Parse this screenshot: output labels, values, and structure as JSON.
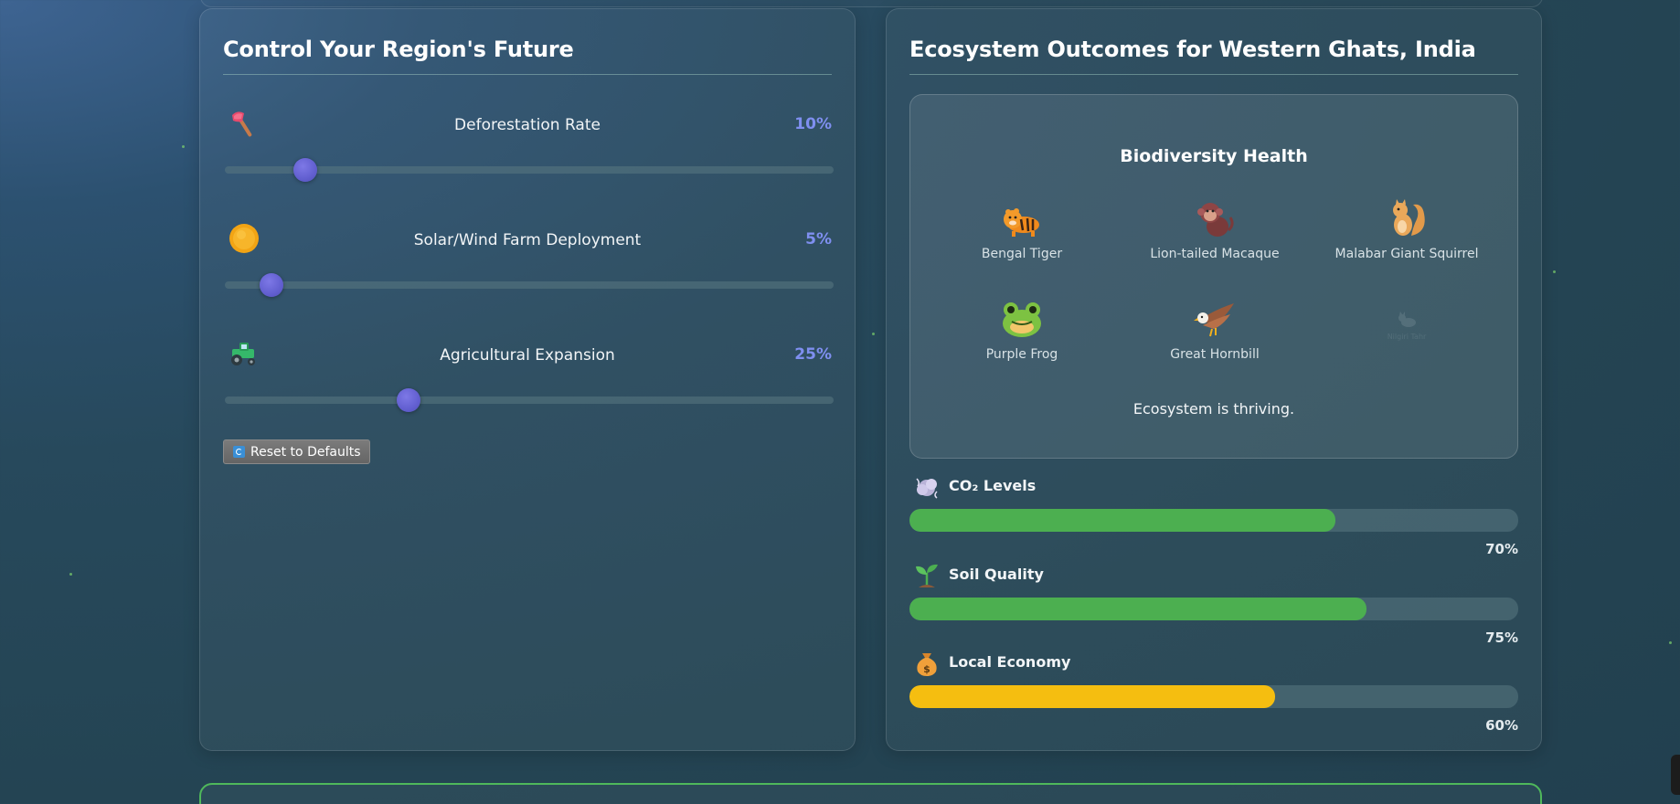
{
  "controls": {
    "title": "Control Your Region's Future",
    "sliders": [
      {
        "icon": "axe-icon",
        "label": "Deforestation Rate",
        "value_text": "10%",
        "value": 10,
        "min": 0,
        "max": 100
      },
      {
        "icon": "sun-icon",
        "label": "Solar/Wind Farm Deployment",
        "value_text": "5%",
        "value": 5,
        "min": 0,
        "max": 100
      },
      {
        "icon": "tractor-icon",
        "label": "Agricultural Expansion",
        "value_text": "25%",
        "value": 25,
        "min": 0,
        "max": 100
      }
    ],
    "reset_label": "Reset to Defaults",
    "reset_icon": "refresh-icon"
  },
  "outcomes": {
    "title": "Ecosystem Outcomes for Western Ghats, India",
    "biodiversity": {
      "title": "Biodiversity Health",
      "species": [
        {
          "icon": "tiger-icon",
          "name": "Bengal Tiger"
        },
        {
          "icon": "monkey-icon",
          "name": "Lion-tailed Macaque"
        },
        {
          "icon": "squirrel-icon",
          "name": "Malabar Giant Squirrel"
        },
        {
          "icon": "frog-icon",
          "name": "Purple Frog"
        },
        {
          "icon": "eagle-icon",
          "name": "Great Hornbill"
        },
        {
          "icon": "cat-icon",
          "name": "Nilgiri Tahr"
        }
      ],
      "status": "Ecosystem is thriving."
    },
    "metrics": [
      {
        "icon": "cloud-icon",
        "label": "CO₂ Levels",
        "value_text": "70%",
        "value": 0.7,
        "color": "#4caf50"
      },
      {
        "icon": "seedling-icon",
        "label": "Soil Quality",
        "value_text": "75%",
        "value": 0.75,
        "color": "#4caf50"
      },
      {
        "icon": "money-bag-icon",
        "label": "Local Economy",
        "value_text": "60%",
        "value": 0.6,
        "color": "#f5be10"
      }
    ]
  },
  "colors": {
    "accent": "#625fd0",
    "value_text": "#7f8ff0",
    "good": "#4caf50",
    "warning": "#f5be10",
    "border_highlight": "#4fb85b"
  }
}
